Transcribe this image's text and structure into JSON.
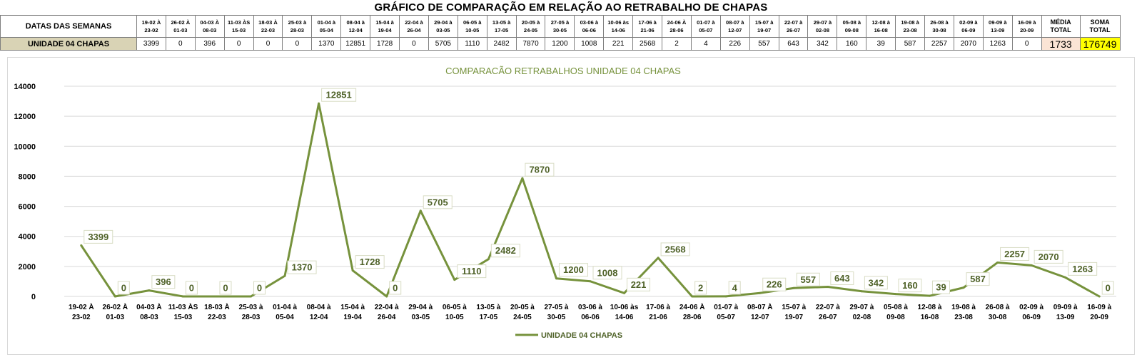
{
  "chart_data": {
    "type": "line",
    "title": "GRÁFICO DE COMPARAÇÃO EM RELAÇÃO AO RETRABALHO DE CHAPAS",
    "chart_title": "COMPARACÃO RETRABALHOS UNIDADE 04 CHAPAS",
    "table": {
      "header_label": "DATAS DAS SEMANAS",
      "row_label": "UNIDADE 04 CHAPAS",
      "columns": [
        [
          "19-02 À",
          "23-02"
        ],
        [
          "26-02 À",
          "01-03"
        ],
        [
          "04-03 À",
          "08-03"
        ],
        [
          "11-03 ÀS",
          "15-03"
        ],
        [
          "18-03 À",
          "22-03"
        ],
        [
          "25-03 à",
          "28-03"
        ],
        [
          "01-04 à",
          "05-04"
        ],
        [
          "08-04 à",
          "12-04"
        ],
        [
          "15-04 à",
          "19-04"
        ],
        [
          "22-04 à",
          "26-04"
        ],
        [
          "29-04 à",
          "03-05"
        ],
        [
          "06-05 à",
          "10-05"
        ],
        [
          "13-05 à",
          "17-05"
        ],
        [
          "20-05 à",
          "24-05"
        ],
        [
          "27-05 à",
          "30-05"
        ],
        [
          "03-06 à",
          "06-06"
        ],
        [
          "10-06 às",
          "14-06"
        ],
        [
          "17-06 à",
          "21-06"
        ],
        [
          "24-06 À",
          "28-06"
        ],
        [
          "01-07 à",
          "05-07"
        ],
        [
          "08-07 à",
          "12-07"
        ],
        [
          "15-07 à",
          "19-07"
        ],
        [
          "22-07 à",
          "26-07"
        ],
        [
          "29-07 à",
          "02-08"
        ],
        [
          "05-08 à",
          "09-08"
        ],
        [
          "12-08 à",
          "16-08"
        ],
        [
          "19-08 à",
          "23-08"
        ],
        [
          "26-08 à",
          "30-08"
        ],
        [
          "02-09 à",
          "06-09"
        ],
        [
          "09-09 à",
          "13-09"
        ],
        [
          "16-09 à",
          "20-09"
        ]
      ],
      "media_label": [
        "MÉDIA",
        "TOTAL"
      ],
      "media_value": "1733",
      "soma_label": [
        "SOMA",
        "TOTAL"
      ],
      "soma_value": "176749"
    },
    "categories": [
      [
        "19-02 À",
        "23-02"
      ],
      [
        "26-02 À",
        "01-03"
      ],
      [
        "04-03 À",
        "08-03"
      ],
      [
        "11-03 ÀS",
        "15-03"
      ],
      [
        "18-03 À",
        "22-03"
      ],
      [
        "25-03 à",
        "28-03"
      ],
      [
        "01-04 à",
        "05-04"
      ],
      [
        "08-04 à",
        "12-04"
      ],
      [
        "15-04 à",
        "19-04"
      ],
      [
        "22-04 à",
        "26-04"
      ],
      [
        "29-04 à",
        "03-05"
      ],
      [
        "06-05 à",
        "10-05"
      ],
      [
        "13-05 à",
        "17-05"
      ],
      [
        "20-05 à",
        "24-05"
      ],
      [
        "27-05 à",
        "30-05"
      ],
      [
        "03-06 à",
        "06-06"
      ],
      [
        "10-06 às",
        "14-06"
      ],
      [
        "17-06 à",
        "21-06"
      ],
      [
        "24-06 À",
        "28-06"
      ],
      [
        "01-07 à",
        "05-07"
      ],
      [
        "08-07 À",
        "12-07"
      ],
      [
        "15-07 à",
        "19-07"
      ],
      [
        "22-07 à",
        "26-07"
      ],
      [
        "29-07 à",
        "02-08"
      ],
      [
        "05-08 à",
        "09-08"
      ],
      [
        "12-08 à",
        "16-08"
      ],
      [
        "19-08 à",
        "23-08"
      ],
      [
        "26-08 à",
        "30-08"
      ],
      [
        "02-09 à",
        "06-09"
      ],
      [
        "09-09 à",
        "13-09"
      ],
      [
        "16-09 à",
        "20-09"
      ]
    ],
    "series": [
      {
        "name": "UNIDADE 04 CHAPAS",
        "color": "#76923c",
        "values": [
          3399,
          0,
          396,
          0,
          0,
          0,
          1370,
          12851,
          1728,
          0,
          5705,
          1110,
          2482,
          7870,
          1200,
          1008,
          221,
          2568,
          2,
          4,
          226,
          557,
          643,
          342,
          160,
          39,
          587,
          2257,
          2070,
          1263,
          0
        ]
      }
    ],
    "yticks": [
      0,
      2000,
      4000,
      6000,
      8000,
      10000,
      12000,
      14000
    ],
    "ylim": [
      0,
      14000
    ],
    "grid": true,
    "legend": "bottom",
    "colors": {
      "line": "#76923c",
      "label_text": "#4f6228",
      "title_text": "#76923c",
      "rowlbl_bg": "#d9d3b5",
      "media_bg": "#fbe4d5",
      "soma_bg": "#ffff00"
    }
  }
}
